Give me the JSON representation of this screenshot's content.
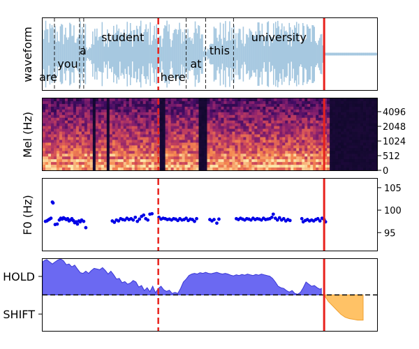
{
  "colors": {
    "waveform": "#a6c8e0",
    "red_line": "#e8211c",
    "f0_points": "#0000e6",
    "hold_fill": "#6b69f2",
    "hold_line": "#3a37d6",
    "shift_fill": "#ffc266",
    "shift_line": "#f0a030"
  },
  "chart_data": [
    {
      "type": "line",
      "panel": "waveform",
      "ylabel": "waveform",
      "x_range": [
        0,
        480
      ],
      "y_range": [
        -1,
        1
      ],
      "words": [
        {
          "text": "are",
          "x": 8,
          "row": "bottom"
        },
        {
          "text": "you",
          "x": 36,
          "row": "middle"
        },
        {
          "text": "a",
          "x": 58,
          "row": "upper"
        },
        {
          "text": "student",
          "x": 115,
          "row": "top"
        },
        {
          "text": "here",
          "x": 187,
          "row": "bottom"
        },
        {
          "text": "at",
          "x": 220,
          "row": "middle"
        },
        {
          "text": "this",
          "x": 254,
          "row": "upper"
        },
        {
          "text": "university",
          "x": 339,
          "row": "top"
        }
      ],
      "word_boundaries": [
        17,
        53,
        59,
        206,
        234,
        274
      ],
      "speech_segments": [
        [
          0,
          62
        ],
        [
          70,
          165
        ],
        [
          168,
          230
        ],
        [
          240,
          278
        ],
        [
          280,
          404
        ]
      ],
      "dashed_marker_x": 166,
      "solid_marker_x": 404
    },
    {
      "type": "heatmap",
      "panel": "mel",
      "ylabel": "Mel (Hz)",
      "y_ticks": [
        "0",
        "512",
        "1024",
        "2048",
        "4096"
      ],
      "silence_columns": [
        [
          70,
          75
        ],
        [
          90,
          94
        ],
        [
          168,
          172
        ],
        [
          222,
          234
        ],
        [
          410,
          480
        ]
      ],
      "dashed_marker_x": 166,
      "solid_marker_x": 404
    },
    {
      "type": "scatter",
      "panel": "f0",
      "ylabel": "F0 (Hz)",
      "ylim": [
        91,
        107
      ],
      "y_ticks": [
        95,
        100,
        105
      ],
      "dashed_marker_x": 166,
      "solid_marker_x": 404,
      "points": [
        [
          4,
          97.5
        ],
        [
          6,
          97.6
        ],
        [
          8,
          97.8
        ],
        [
          10,
          98.0
        ],
        [
          12,
          98.2
        ],
        [
          14,
          101.8
        ],
        [
          15,
          101.6
        ],
        [
          18,
          96.8
        ],
        [
          21,
          96.9
        ],
        [
          24,
          97.8
        ],
        [
          26,
          98.2
        ],
        [
          28,
          98.0
        ],
        [
          30,
          98.3
        ],
        [
          32,
          98.1
        ],
        [
          34,
          97.9
        ],
        [
          36,
          98.1
        ],
        [
          38,
          97.6
        ],
        [
          40,
          97.8
        ],
        [
          42,
          98.1
        ],
        [
          44,
          97.7
        ],
        [
          46,
          97.2
        ],
        [
          48,
          97.4
        ],
        [
          50,
          96.9
        ],
        [
          52,
          97.6
        ],
        [
          54,
          97.4
        ],
        [
          56,
          97.8
        ],
        [
          59,
          97.5
        ],
        [
          62,
          96.1
        ],
        [
          100,
          97.6
        ],
        [
          103,
          97.3
        ],
        [
          106,
          97.8
        ],
        [
          109,
          97.6
        ],
        [
          112,
          98.1
        ],
        [
          115,
          97.9
        ],
        [
          118,
          97.8
        ],
        [
          121,
          98.2
        ],
        [
          124,
          97.9
        ],
        [
          127,
          98.1
        ],
        [
          130,
          97.8
        ],
        [
          133,
          98.4
        ],
        [
          136,
          97.5
        ],
        [
          139,
          98.0
        ],
        [
          142,
          98.6
        ],
        [
          145,
          98.9
        ],
        [
          148,
          98.1
        ],
        [
          151,
          97.8
        ],
        [
          154,
          99.1
        ],
        [
          157,
          99.2
        ],
        [
          167,
          98.4
        ],
        [
          170,
          98.0
        ],
        [
          173,
          98.2
        ],
        [
          176,
          98.1
        ],
        [
          179,
          97.9
        ],
        [
          182,
          98.0
        ],
        [
          185,
          97.8
        ],
        [
          188,
          98.1
        ],
        [
          191,
          98.0
        ],
        [
          194,
          97.7
        ],
        [
          197,
          98.1
        ],
        [
          200,
          97.8
        ],
        [
          203,
          97.9
        ],
        [
          206,
          98.2
        ],
        [
          209,
          97.7
        ],
        [
          212,
          98.0
        ],
        [
          215,
          97.9
        ],
        [
          218,
          97.5
        ],
        [
          221,
          98.1
        ],
        [
          240,
          97.9
        ],
        [
          243,
          97.6
        ],
        [
          246,
          97.9
        ],
        [
          250,
          97.1
        ],
        [
          253,
          98.0
        ],
        [
          278,
          98.1
        ],
        [
          281,
          97.9
        ],
        [
          284,
          98.2
        ],
        [
          287,
          98.0
        ],
        [
          290,
          97.8
        ],
        [
          293,
          98.1
        ],
        [
          296,
          98.0
        ],
        [
          299,
          97.8
        ],
        [
          302,
          98.2
        ],
        [
          305,
          97.9
        ],
        [
          308,
          98.1
        ],
        [
          311,
          98.0
        ],
        [
          314,
          97.8
        ],
        [
          317,
          98.2
        ],
        [
          320,
          97.9
        ],
        [
          323,
          98.0
        ],
        [
          326,
          98.1
        ],
        [
          329,
          98.4
        ],
        [
          331,
          99.1
        ],
        [
          334,
          98.2
        ],
        [
          337,
          97.8
        ],
        [
          340,
          98.3
        ],
        [
          343,
          97.8
        ],
        [
          346,
          98.1
        ],
        [
          349,
          97.6
        ],
        [
          352,
          97.9
        ],
        [
          355,
          97.7
        ],
        [
          372,
          98.1
        ],
        [
          374,
          97.4
        ],
        [
          377,
          97.7
        ],
        [
          380,
          97.9
        ],
        [
          383,
          97.6
        ],
        [
          386,
          97.8
        ],
        [
          389,
          97.6
        ],
        [
          392,
          97.9
        ],
        [
          395,
          98.1
        ],
        [
          398,
          97.6
        ],
        [
          401,
          98.2
        ],
        [
          404,
          97.9
        ],
        [
          406,
          97.4
        ]
      ]
    },
    {
      "type": "area",
      "panel": "turn-taking",
      "y_tick_labels": [
        "HOLD",
        "SHIFT"
      ],
      "ylim": [
        -1,
        1
      ],
      "threshold_y": 0,
      "dashed_marker_x": 166,
      "solid_marker_x": 404,
      "hold_series": [
        [
          0,
          0.92
        ],
        [
          3,
          0.96
        ],
        [
          6,
          0.98
        ],
        [
          10,
          0.92
        ],
        [
          14,
          0.86
        ],
        [
          18,
          0.92
        ],
        [
          22,
          0.97
        ],
        [
          26,
          1.0
        ],
        [
          30,
          0.95
        ],
        [
          34,
          0.84
        ],
        [
          38,
          0.86
        ],
        [
          42,
          0.78
        ],
        [
          46,
          0.83
        ],
        [
          50,
          0.72
        ],
        [
          54,
          0.62
        ],
        [
          58,
          0.6
        ],
        [
          62,
          0.66
        ],
        [
          66,
          0.6
        ],
        [
          70,
          0.68
        ],
        [
          74,
          0.74
        ],
        [
          78,
          0.72
        ],
        [
          82,
          0.7
        ],
        [
          86,
          0.76
        ],
        [
          90,
          0.68
        ],
        [
          94,
          0.58
        ],
        [
          98,
          0.66
        ],
        [
          102,
          0.56
        ],
        [
          106,
          0.44
        ],
        [
          110,
          0.46
        ],
        [
          114,
          0.34
        ],
        [
          118,
          0.37
        ],
        [
          122,
          0.3
        ],
        [
          126,
          0.33
        ],
        [
          130,
          0.4
        ],
        [
          134,
          0.36
        ],
        [
          138,
          0.22
        ],
        [
          142,
          0.26
        ],
        [
          146,
          0.12
        ],
        [
          150,
          0.2
        ],
        [
          154,
          0.09
        ],
        [
          158,
          0.24
        ],
        [
          162,
          0.06
        ],
        [
          166,
          0.18
        ],
        [
          170,
          0.24
        ],
        [
          174,
          0.14
        ],
        [
          178,
          0.1
        ],
        [
          182,
          0.13
        ],
        [
          186,
          0.04
        ],
        [
          190,
          0.07
        ],
        [
          194,
          0.04
        ],
        [
          198,
          0.18
        ],
        [
          202,
          0.36
        ],
        [
          206,
          0.44
        ],
        [
          210,
          0.54
        ],
        [
          214,
          0.58
        ],
        [
          218,
          0.6
        ],
        [
          222,
          0.58
        ],
        [
          226,
          0.62
        ],
        [
          230,
          0.6
        ],
        [
          234,
          0.63
        ],
        [
          238,
          0.6
        ],
        [
          242,
          0.59
        ],
        [
          246,
          0.61
        ],
        [
          250,
          0.63
        ],
        [
          254,
          0.6
        ],
        [
          258,
          0.58
        ],
        [
          262,
          0.6
        ],
        [
          266,
          0.58
        ],
        [
          270,
          0.55
        ],
        [
          274,
          0.53
        ],
        [
          278,
          0.56
        ],
        [
          282,
          0.54
        ],
        [
          286,
          0.57
        ],
        [
          290,
          0.55
        ],
        [
          294,
          0.58
        ],
        [
          298,
          0.56
        ],
        [
          302,
          0.54
        ],
        [
          306,
          0.57
        ],
        [
          310,
          0.55
        ],
        [
          314,
          0.58
        ],
        [
          318,
          0.56
        ],
        [
          322,
          0.54
        ],
        [
          326,
          0.52
        ],
        [
          330,
          0.46
        ],
        [
          334,
          0.36
        ],
        [
          338,
          0.24
        ],
        [
          342,
          0.2
        ],
        [
          346,
          0.18
        ],
        [
          350,
          0.12
        ],
        [
          354,
          0.08
        ],
        [
          358,
          0.12
        ],
        [
          362,
          0.04
        ],
        [
          366,
          0.02
        ],
        [
          370,
          0.07
        ],
        [
          374,
          0.2
        ],
        [
          378,
          0.36
        ],
        [
          382,
          0.3
        ],
        [
          386,
          0.24
        ],
        [
          390,
          0.26
        ],
        [
          394,
          0.2
        ],
        [
          398,
          0.16
        ],
        [
          400,
          0.18
        ]
      ],
      "shift_series": [
        [
          404,
          0.0
        ],
        [
          410,
          -0.18
        ],
        [
          416,
          -0.3
        ],
        [
          422,
          -0.42
        ],
        [
          428,
          -0.54
        ],
        [
          434,
          -0.62
        ],
        [
          440,
          -0.66
        ],
        [
          446,
          -0.68
        ],
        [
          452,
          -0.7
        ],
        [
          460,
          -0.7
        ]
      ]
    }
  ]
}
